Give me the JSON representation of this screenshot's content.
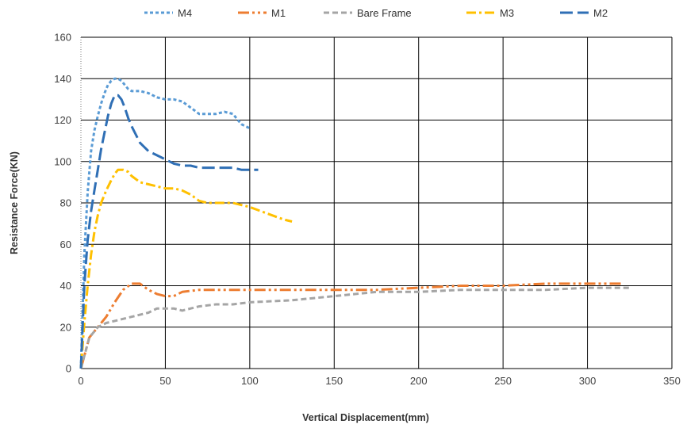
{
  "chart_data": {
    "type": "line",
    "title": "",
    "xlabel": "Vertical Displacement(mm)",
    "ylabel": "Resistance Force(KN)",
    "xlim": [
      0,
      350
    ],
    "ylim": [
      0,
      160
    ],
    "xticks": [
      0,
      50,
      100,
      150,
      200,
      250,
      300,
      350
    ],
    "yticks": [
      0,
      20,
      40,
      60,
      80,
      100,
      120,
      140,
      160
    ],
    "grid": true,
    "legend_position": "top",
    "series": [
      {
        "name": "M4",
        "color": "#5a9bd5",
        "dash": "short-dash",
        "x": [
          0,
          2,
          4,
          6,
          8,
          10,
          12,
          14,
          16,
          18,
          20,
          22,
          24,
          26,
          28,
          30,
          35,
          40,
          45,
          50,
          55,
          60,
          65,
          70,
          75,
          80,
          85,
          90,
          95,
          100
        ],
        "y": [
          0,
          55,
          85,
          105,
          115,
          122,
          128,
          133,
          137,
          139,
          140,
          140,
          139,
          137,
          135,
          134,
          134,
          133,
          131,
          130,
          130,
          129,
          126,
          123,
          123,
          123,
          124,
          123,
          118,
          116
        ]
      },
      {
        "name": "M1",
        "color": "#ed7d31",
        "dash": "dash-dot-dot",
        "x": [
          0,
          5,
          10,
          15,
          20,
          25,
          30,
          35,
          40,
          45,
          50,
          55,
          60,
          70,
          80,
          90,
          100,
          125,
          150,
          175,
          200,
          225,
          250,
          275,
          300,
          310,
          320
        ],
        "y": [
          0,
          15,
          20,
          25,
          32,
          38,
          41,
          41,
          38,
          36,
          35,
          35,
          37,
          38,
          38,
          38,
          38,
          38,
          38,
          38,
          39,
          40,
          40,
          41,
          41,
          41,
          41
        ]
      },
      {
        "name": "Bare Frame",
        "color": "#a5a5a5",
        "dash": "dash",
        "x": [
          0,
          5,
          10,
          15,
          20,
          25,
          30,
          35,
          40,
          45,
          50,
          55,
          60,
          65,
          70,
          80,
          90,
          100,
          125,
          150,
          175,
          200,
          225,
          250,
          275,
          300,
          325
        ],
        "y": [
          0,
          15,
          20,
          22,
          23,
          24,
          25,
          26,
          27,
          29,
          29,
          29,
          28,
          29,
          30,
          31,
          31,
          32,
          33,
          35,
          37,
          37,
          38,
          38,
          38,
          39,
          39
        ]
      },
      {
        "name": "M3",
        "color": "#ffc000",
        "dash": "dash-dot",
        "x": [
          0,
          2,
          4,
          6,
          8,
          10,
          12,
          15,
          18,
          20,
          22,
          25,
          28,
          30,
          35,
          40,
          45,
          50,
          55,
          60,
          65,
          70,
          75,
          80,
          90,
          100,
          110,
          120,
          125
        ],
        "y": [
          0,
          22,
          40,
          55,
          66,
          74,
          80,
          86,
          91,
          94,
          96,
          96,
          95,
          93,
          90,
          89,
          88,
          87,
          87,
          86,
          84,
          81,
          80,
          80,
          80,
          78,
          75,
          72,
          71
        ]
      },
      {
        "name": "M2",
        "color": "#2f6fb5",
        "dash": "long-dash",
        "x": [
          0,
          2,
          4,
          6,
          8,
          10,
          12,
          14,
          16,
          18,
          20,
          22,
          24,
          26,
          28,
          30,
          35,
          40,
          45,
          50,
          55,
          60,
          65,
          70,
          75,
          80,
          85,
          90,
          95,
          100,
          105
        ],
        "y": [
          0,
          40,
          62,
          76,
          86,
          96,
          106,
          114,
          122,
          128,
          132,
          132,
          130,
          126,
          121,
          117,
          109,
          105,
          103,
          101,
          99,
          98,
          98,
          97,
          97,
          97,
          97,
          97,
          96,
          96,
          96
        ]
      }
    ]
  }
}
